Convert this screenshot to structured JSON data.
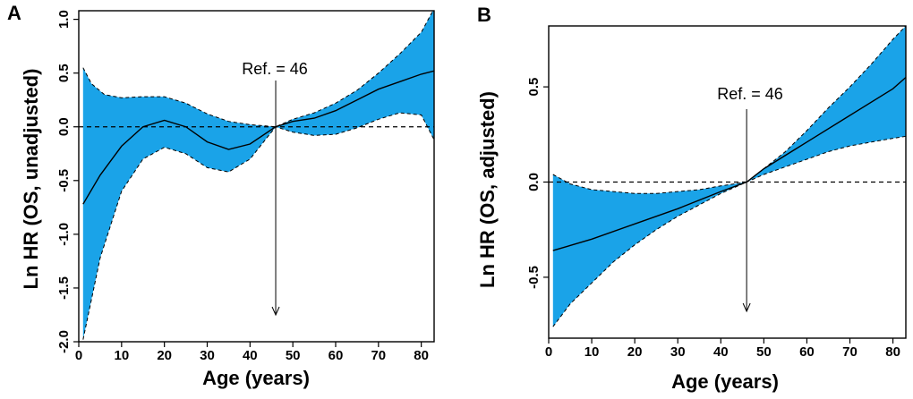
{
  "colors": {
    "band": "#1aa3e8",
    "line": "#000000",
    "background": "#ffffff"
  },
  "chart_data": [
    {
      "panel": "A",
      "type": "line",
      "xlabel": "Age (years)",
      "ylabel": "Ln HR (OS, unadjusted)",
      "xlim": [
        0,
        83
      ],
      "ylim": [
        -2.0,
        1.08
      ],
      "xticks": [
        0,
        10,
        20,
        30,
        40,
        50,
        60,
        70,
        80
      ],
      "xtick_labels": [
        "0",
        "10",
        "20",
        "30",
        "40",
        "50",
        "60",
        "70",
        "80"
      ],
      "yticks": [
        -2.0,
        -1.5,
        -1.0,
        -0.5,
        0.0,
        0.5,
        1.0
      ],
      "ytick_labels": [
        "-2.0",
        "-1.5",
        "-1.0",
        "-0.5",
        "0.0",
        "0.5",
        "1.0"
      ],
      "reference": {
        "value": 46,
        "label": "Ref. = 46"
      },
      "baseline": 0,
      "series": [
        {
          "name": "estimate",
          "x": [
            1,
            5,
            10,
            15,
            20,
            25,
            30,
            35,
            40,
            46,
            50,
            55,
            60,
            65,
            70,
            75,
            80,
            83
          ],
          "y": [
            -0.72,
            -0.45,
            -0.18,
            0.0,
            0.06,
            0.0,
            -0.14,
            -0.21,
            -0.16,
            0.0,
            0.05,
            0.08,
            0.15,
            0.25,
            0.35,
            0.42,
            0.49,
            0.52
          ]
        },
        {
          "name": "upper 95% CI",
          "x": [
            1,
            3,
            6,
            10,
            15,
            20,
            25,
            30,
            35,
            40,
            46,
            50,
            55,
            60,
            65,
            70,
            75,
            80,
            83
          ],
          "y": [
            0.55,
            0.4,
            0.3,
            0.27,
            0.28,
            0.28,
            0.22,
            0.12,
            0.05,
            0.02,
            0.0,
            0.07,
            0.13,
            0.22,
            0.34,
            0.5,
            0.68,
            0.88,
            1.1
          ]
        },
        {
          "name": "lower 95% CI",
          "x": [
            1,
            5,
            10,
            15,
            20,
            25,
            30,
            35,
            40,
            46,
            50,
            55,
            60,
            65,
            70,
            75,
            80,
            83
          ],
          "y": [
            -1.98,
            -1.22,
            -0.6,
            -0.3,
            -0.19,
            -0.25,
            -0.38,
            -0.42,
            -0.3,
            0.0,
            -0.05,
            -0.08,
            -0.07,
            -0.01,
            0.07,
            0.13,
            0.11,
            -0.12
          ]
        }
      ]
    },
    {
      "panel": "B",
      "type": "line",
      "xlabel": "Age (years)",
      "ylabel": "Ln HR (OS, adjusted)",
      "xlim": [
        0,
        83
      ],
      "ylim": [
        -0.82,
        0.82
      ],
      "xticks": [
        0,
        10,
        20,
        30,
        40,
        50,
        60,
        70,
        80
      ],
      "xtick_labels": [
        "0",
        "10",
        "20",
        "30",
        "40",
        "50",
        "60",
        "70",
        "80"
      ],
      "yticks": [
        -0.5,
        0.0,
        0.5
      ],
      "ytick_labels": [
        "-0.5",
        "0.0",
        "0.5"
      ],
      "reference": {
        "value": 46,
        "label": "Ref. = 46"
      },
      "baseline": 0,
      "series": [
        {
          "name": "estimate",
          "x": [
            1,
            10,
            20,
            30,
            40,
            46,
            50,
            60,
            70,
            80,
            83
          ],
          "y": [
            -0.36,
            -0.3,
            -0.22,
            -0.14,
            -0.05,
            0.0,
            0.07,
            0.21,
            0.35,
            0.49,
            0.55
          ]
        },
        {
          "name": "upper 95% CI",
          "x": [
            1,
            5,
            10,
            15,
            20,
            25,
            30,
            35,
            40,
            46,
            50,
            55,
            60,
            65,
            70,
            75,
            80,
            83
          ],
          "y": [
            0.04,
            -0.01,
            -0.04,
            -0.05,
            -0.06,
            -0.06,
            -0.05,
            -0.04,
            -0.02,
            0.0,
            0.07,
            0.16,
            0.27,
            0.39,
            0.5,
            0.62,
            0.75,
            0.82
          ]
        },
        {
          "name": "lower 95% CI",
          "x": [
            1,
            5,
            10,
            15,
            20,
            25,
            30,
            35,
            40,
            46,
            50,
            55,
            60,
            65,
            70,
            75,
            80,
            83
          ],
          "y": [
            -0.76,
            -0.64,
            -0.53,
            -0.42,
            -0.33,
            -0.25,
            -0.18,
            -0.12,
            -0.06,
            0.0,
            0.04,
            0.08,
            0.12,
            0.16,
            0.19,
            0.21,
            0.23,
            0.24
          ]
        }
      ]
    }
  ]
}
